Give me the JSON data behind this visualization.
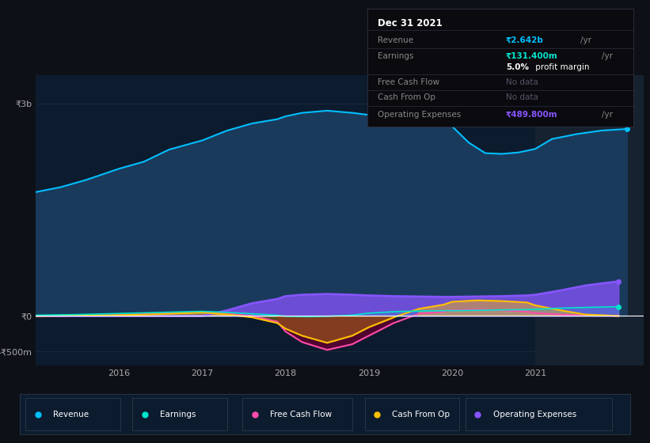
{
  "bg_color": "#0d1117",
  "plot_bg_color": "#0d1b2e",
  "revenue_color": "#00bfff",
  "revenue_fill": "#1a3a5c",
  "earnings_color": "#00e5cc",
  "free_cash_flow_color": "#ff4dac",
  "cash_from_op_color": "#ffc000",
  "operating_expenses_color": "#8855ff",
  "highlight_color": "#162230",
  "zero_line_color": "#ffffff",
  "grid_color": "#1e2d3d",
  "ylim": [
    -700,
    3400
  ],
  "xlim": [
    2015.0,
    2022.3
  ],
  "revenue_x": [
    2015.0,
    2015.3,
    2015.6,
    2016.0,
    2016.3,
    2016.6,
    2017.0,
    2017.3,
    2017.6,
    2017.9,
    2018.0,
    2018.2,
    2018.5,
    2018.8,
    2019.0,
    2019.2,
    2019.4,
    2019.6,
    2019.8,
    2020.0,
    2020.2,
    2020.4,
    2020.6,
    2020.8,
    2021.0,
    2021.2,
    2021.5,
    2021.8,
    2022.1
  ],
  "revenue_y": [
    1750,
    1820,
    1920,
    2080,
    2180,
    2350,
    2480,
    2620,
    2720,
    2780,
    2820,
    2870,
    2900,
    2870,
    2840,
    2820,
    2790,
    2760,
    2730,
    2680,
    2450,
    2300,
    2290,
    2310,
    2360,
    2500,
    2570,
    2620,
    2642
  ],
  "earnings_x": [
    2015.0,
    2015.5,
    2016.0,
    2016.5,
    2017.0,
    2017.3,
    2017.6,
    2017.9,
    2018.0,
    2018.3,
    2018.5,
    2018.8,
    2019.0,
    2019.3,
    2019.6,
    2020.0,
    2020.3,
    2020.6,
    2020.9,
    2021.0,
    2021.3,
    2021.6,
    2022.0
  ],
  "earnings_y": [
    10,
    20,
    35,
    50,
    65,
    50,
    30,
    10,
    -5,
    -10,
    -5,
    10,
    40,
    60,
    70,
    75,
    80,
    85,
    90,
    95,
    110,
    120,
    131
  ],
  "fcf_x": [
    2015.0,
    2015.5,
    2016.0,
    2016.5,
    2017.0,
    2017.3,
    2017.6,
    2017.9,
    2018.0,
    2018.2,
    2018.5,
    2018.8,
    2019.0,
    2019.3,
    2019.6,
    2019.9,
    2020.0,
    2020.3,
    2020.6,
    2020.9,
    2021.0,
    2021.3,
    2021.6,
    2022.0
  ],
  "fcf_y": [
    0,
    5,
    15,
    35,
    60,
    30,
    0,
    -80,
    -220,
    -370,
    -480,
    -400,
    -280,
    -100,
    30,
    60,
    80,
    90,
    80,
    60,
    40,
    20,
    5,
    0
  ],
  "cash_from_op_x": [
    2015.0,
    2015.5,
    2016.0,
    2016.5,
    2017.0,
    2017.3,
    2017.6,
    2017.9,
    2018.0,
    2018.2,
    2018.5,
    2018.8,
    2019.0,
    2019.3,
    2019.6,
    2019.9,
    2020.0,
    2020.3,
    2020.6,
    2020.9,
    2021.0,
    2021.3,
    2021.6,
    2022.0
  ],
  "cash_from_op_y": [
    0,
    5,
    10,
    25,
    50,
    20,
    -20,
    -100,
    -180,
    -280,
    -380,
    -280,
    -160,
    -20,
    100,
    160,
    200,
    220,
    210,
    190,
    150,
    80,
    20,
    0
  ],
  "op_expenses_x": [
    2015.0,
    2015.5,
    2016.0,
    2016.5,
    2017.0,
    2017.3,
    2017.6,
    2017.9,
    2018.0,
    2018.2,
    2018.5,
    2018.8,
    2019.0,
    2019.3,
    2019.6,
    2019.9,
    2020.0,
    2020.3,
    2020.6,
    2020.9,
    2021.0,
    2021.3,
    2021.6,
    2022.0
  ],
  "op_expenses_y": [
    0,
    0,
    0,
    0,
    0,
    80,
    180,
    240,
    280,
    300,
    310,
    300,
    290,
    280,
    275,
    270,
    270,
    275,
    280,
    290,
    300,
    360,
    430,
    490
  ],
  "highlight_x_start": 2021.0,
  "xtick_vals": [
    2016,
    2017,
    2018,
    2019,
    2020,
    2021
  ],
  "ytick_vals": [
    3000,
    0,
    -500
  ],
  "ytick_labels": [
    "₹3b",
    "₹0",
    "-₹500m"
  ],
  "tooltip_title": "Dec 31 2021",
  "tooltip_revenue": "₹2.642b",
  "tooltip_earnings": "₹131.400m",
  "tooltip_margin": "5.0%",
  "tooltip_fcf": "No data",
  "tooltip_cash": "No data",
  "tooltip_opex": "₹489.800m",
  "legend_items": [
    {
      "label": "Revenue",
      "color": "#00bfff"
    },
    {
      "label": "Earnings",
      "color": "#00e5cc"
    },
    {
      "label": "Free Cash Flow",
      "color": "#ff4dac"
    },
    {
      "label": "Cash From Op",
      "color": "#ffc000"
    },
    {
      "label": "Operating Expenses",
      "color": "#8855ff"
    }
  ]
}
